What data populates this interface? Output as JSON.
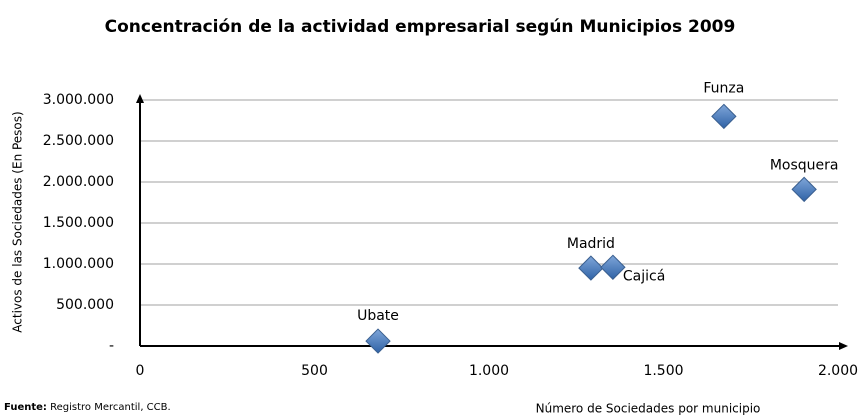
{
  "chart_data": {
    "type": "scatter",
    "title": "Concentración  de la actividad empresarial según Municipios 2009",
    "ylabel": "Activos de las Sociedades (En Pesos)",
    "xlabel": "Número de  Sociedades por municipio",
    "source_label": "Fuente:",
    "source": "Registro Mercantil, CCB.",
    "labels": [
      "Ubate",
      "Madrid",
      "Cajicá",
      "Funza",
      "Mosquera"
    ],
    "x": [
      682,
      1292,
      1355,
      1673,
      1903
    ],
    "values": [
      60000,
      950000,
      960000,
      2800000,
      1910000
    ],
    "color": "#4f81bd",
    "xlim": [
      0,
      2000
    ],
    "xticks": [
      0,
      500,
      {
        "value": 1000,
        "label": "1.000"
      },
      {
        "value": 1500,
        "label": "1.500"
      },
      {
        "value": 2000,
        "label": "2.000"
      }
    ],
    "ylim": [
      0,
      3000000
    ],
    "yticks": [
      {
        "value": 0,
        "label": "-"
      },
      {
        "value": 500000,
        "label": "500.000"
      },
      {
        "value": 1000000,
        "label": "1.000.000"
      },
      {
        "value": 1500000,
        "label": "1.500.000"
      },
      {
        "value": 2000000,
        "label": "2.000.000"
      },
      {
        "value": 2500000,
        "label": "2.500.000"
      },
      {
        "value": 3000000,
        "label": "3.000.000"
      }
    ],
    "grid": true
  }
}
